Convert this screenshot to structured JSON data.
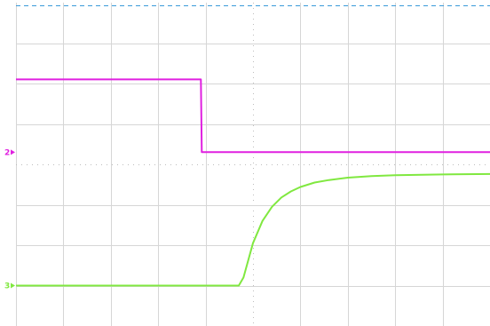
{
  "chart_data": {
    "type": "line",
    "title": "",
    "xlabel": "",
    "ylabel": "",
    "grid": true,
    "xlim": [
      0,
      10
    ],
    "ylim": [
      -4,
      4
    ],
    "x_divisions": 10,
    "y_divisions": 8,
    "trigger_level": 4,
    "series": [
      {
        "marker_label": "2",
        "color": "#e020e0",
        "x": [
          0,
          3.9,
          3.92,
          10
        ],
        "y": [
          2.1,
          2.1,
          0.3,
          0.3
        ]
      },
      {
        "marker_label": "3",
        "color": "#80e840",
        "x": [
          0,
          4.7,
          4.8,
          5.0,
          5.2,
          5.4,
          5.6,
          5.8,
          6.0,
          6.3,
          6.6,
          7.0,
          7.5,
          8.0,
          9.0,
          10
        ],
        "y": [
          -3.0,
          -3.0,
          -2.8,
          -1.95,
          -1.4,
          -1.05,
          -0.82,
          -0.67,
          -0.56,
          -0.45,
          -0.39,
          -0.33,
          -0.29,
          -0.27,
          -0.25,
          -0.24
        ]
      }
    ]
  }
}
